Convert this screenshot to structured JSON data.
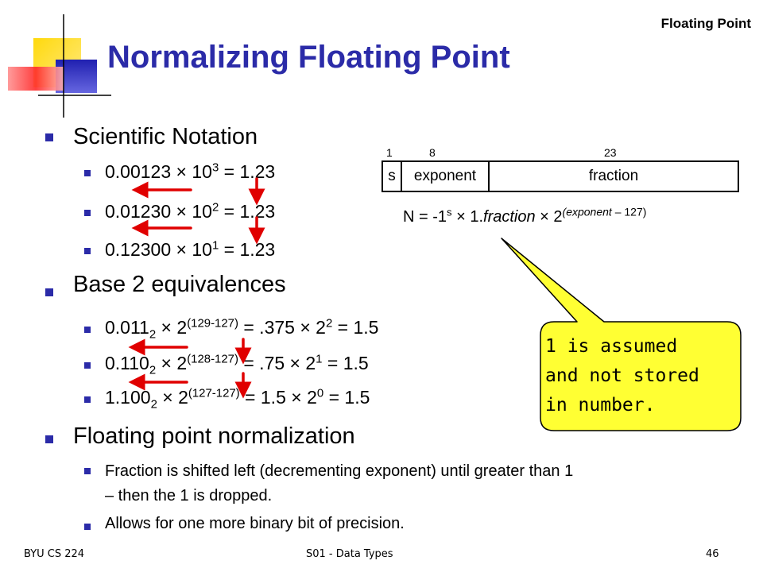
{
  "header": {
    "topic": "Floating Point",
    "title": "Normalizing Floating Point"
  },
  "sections": {
    "scientific": {
      "heading": "Scientific Notation",
      "items": [
        {
          "pre": "0.00123 × 10",
          "exp": "3",
          "post": " = 1.23"
        },
        {
          "pre": "0.01230 × 10",
          "exp": "2",
          "post": " = 1.23"
        },
        {
          "pre": "0.12300 × 10",
          "exp": "1",
          "post": " = 1.23"
        }
      ]
    },
    "base2": {
      "heading": "Base 2 equivalences",
      "items": [
        {
          "mant": "0.011",
          "sub": "2",
          "mid": " × 2",
          "exp1": "(129-127)",
          "mid2": " = .375 × 2",
          "exp2": "2",
          "post": " = 1.5"
        },
        {
          "mant": "0.110",
          "sub": "2",
          "mid": " × 2",
          "exp1": "(128-127)",
          "mid2": " = .75 × 2",
          "exp2": "1",
          "post": " = 1.5"
        },
        {
          "mant": "1.100",
          "sub": "2",
          "mid": " × 2",
          "exp1": "(127-127)",
          "mid2": " = 1.5 × 2",
          "exp2": "0",
          "post": " = 1.5"
        }
      ]
    },
    "normalization": {
      "heading": "Floating point normalization",
      "items": [
        "Fraction is shifted left (decrementing exponent) until greater than 1",
        "– then the 1 is dropped.",
        "Allows for one more binary bit of precision."
      ]
    }
  },
  "format": {
    "bits": {
      "sign": "1",
      "exponent": "8",
      "fraction": "23"
    },
    "fields": {
      "sign": "s",
      "exponent": "exponent",
      "fraction": "fraction"
    },
    "formula": {
      "lhs": "N = -1",
      "s": "s",
      "mid": " × 1.",
      "frac": "fraction",
      "mid2": " × 2",
      "exp": "(exponent – 127)"
    }
  },
  "callout": {
    "lines": [
      "1 is assumed",
      "and not stored",
      "in number."
    ]
  },
  "footer": {
    "course": "BYU CS 224",
    "deck": "S01 - Data Types",
    "page": "46"
  },
  "colors": {
    "title": "#2b2ba8",
    "bullet": "#2b2ba8",
    "arrow": "#e00000",
    "callout_fill": "#ffff33",
    "deco_yellow": "#ffd700",
    "deco_red": "#ff5050",
    "deco_blue": "#3333cc"
  }
}
